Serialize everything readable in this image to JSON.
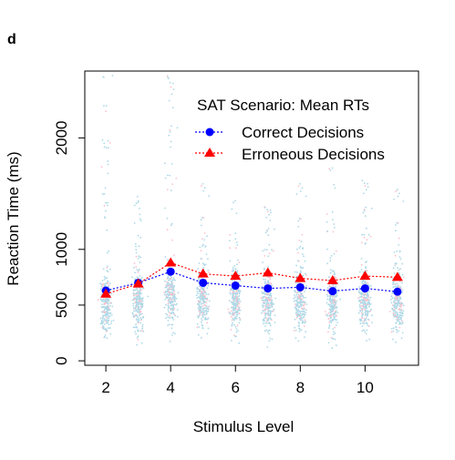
{
  "panel_label": "d",
  "chart_data": {
    "type": "scatter",
    "title": "",
    "xlabel": "Stimulus Level",
    "ylabel": "Reaction Time (ms)",
    "xlim": [
      1.35,
      11.65
    ],
    "ylim": [
      -40,
      2600
    ],
    "x_ticks": [
      2,
      4,
      6,
      8,
      10
    ],
    "x_tick_labels": [
      "2",
      "4",
      "6",
      "8",
      "10"
    ],
    "y_ticks": [
      0,
      500,
      1000,
      2000
    ],
    "y_tick_labels": [
      "0",
      "500",
      "1000",
      "2000"
    ],
    "grid": false,
    "legend": {
      "title": "SAT Scenario: Mean RTs",
      "placement": "top-right",
      "entries": [
        "Correct Decisions",
        "Erroneous Decisions"
      ]
    },
    "x": [
      2,
      3,
      4,
      5,
      6,
      7,
      8,
      9,
      10,
      11
    ],
    "series": [
      {
        "name": "Correct Decisions",
        "values": [
          630,
          700,
          800,
          700,
          675,
          650,
          660,
          625,
          650,
          620
        ],
        "color": "#0000ff",
        "marker": "circle",
        "line": "dotted"
      },
      {
        "name": "Erroneous Decisions",
        "values": [
          600,
          690,
          880,
          780,
          760,
          790,
          740,
          720,
          760,
          750
        ],
        "color": "#ff0000",
        "marker": "triangle",
        "line": "dotted"
      }
    ],
    "raw_trials": {
      "correct_color": "#add8e6",
      "error_color": "#ffc0cb",
      "note": "individual trial RTs jittered around each stimulus level",
      "center_ms": [
        500,
        540,
        580,
        560,
        540,
        530,
        530,
        520,
        530,
        520
      ],
      "max_ms": [
        2600,
        1500,
        2600,
        1600,
        1450,
        1400,
        1600,
        1750,
        1650,
        1550
      ]
    }
  }
}
